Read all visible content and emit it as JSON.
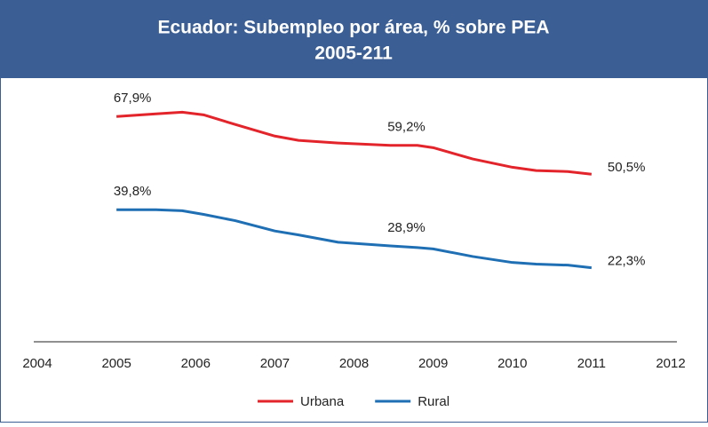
{
  "chart_data": {
    "type": "line",
    "title": "Ecuador: Subempleo por área, % sobre PEA",
    "subtitle": "2005-211",
    "x": [
      2005,
      2005.5,
      2005.83,
      2006.1,
      2006.5,
      2007,
      2007.3,
      2007.8,
      2008.46,
      2008.8,
      2009,
      2009.5,
      2010,
      2010.3,
      2010.7,
      2011
    ],
    "series": [
      {
        "name": "Urbana",
        "color": "#e3242b",
        "values": [
          67.9,
          68.7,
          69.2,
          68.4,
          65.5,
          62.0,
          60.7,
          59.9,
          59.2,
          59.2,
          58.5,
          55.1,
          52.6,
          51.6,
          51.3,
          50.5
        ],
        "value_labels": [
          "67,9%",
          null,
          null,
          null,
          null,
          null,
          null,
          null,
          "59,2%",
          null,
          null,
          null,
          null,
          null,
          null,
          "50,5%"
        ]
      },
      {
        "name": "Rural",
        "color": "#1f6fb4",
        "values": [
          39.8,
          39.8,
          39.5,
          38.4,
          36.5,
          33.4,
          32.2,
          30.0,
          28.9,
          28.4,
          28.0,
          25.7,
          23.9,
          23.4,
          23.1,
          22.3
        ],
        "value_labels": [
          "39,8%",
          null,
          null,
          null,
          null,
          null,
          null,
          null,
          "28,9%",
          null,
          null,
          null,
          null,
          null,
          null,
          "22,3%"
        ]
      }
    ],
    "xlim": [
      2004,
      2012
    ],
    "xticks": [
      2004,
      2005,
      2006,
      2007,
      2008,
      2009,
      2010,
      2011,
      2012
    ],
    "ylim": [
      0,
      80
    ],
    "legend": "bottom"
  }
}
